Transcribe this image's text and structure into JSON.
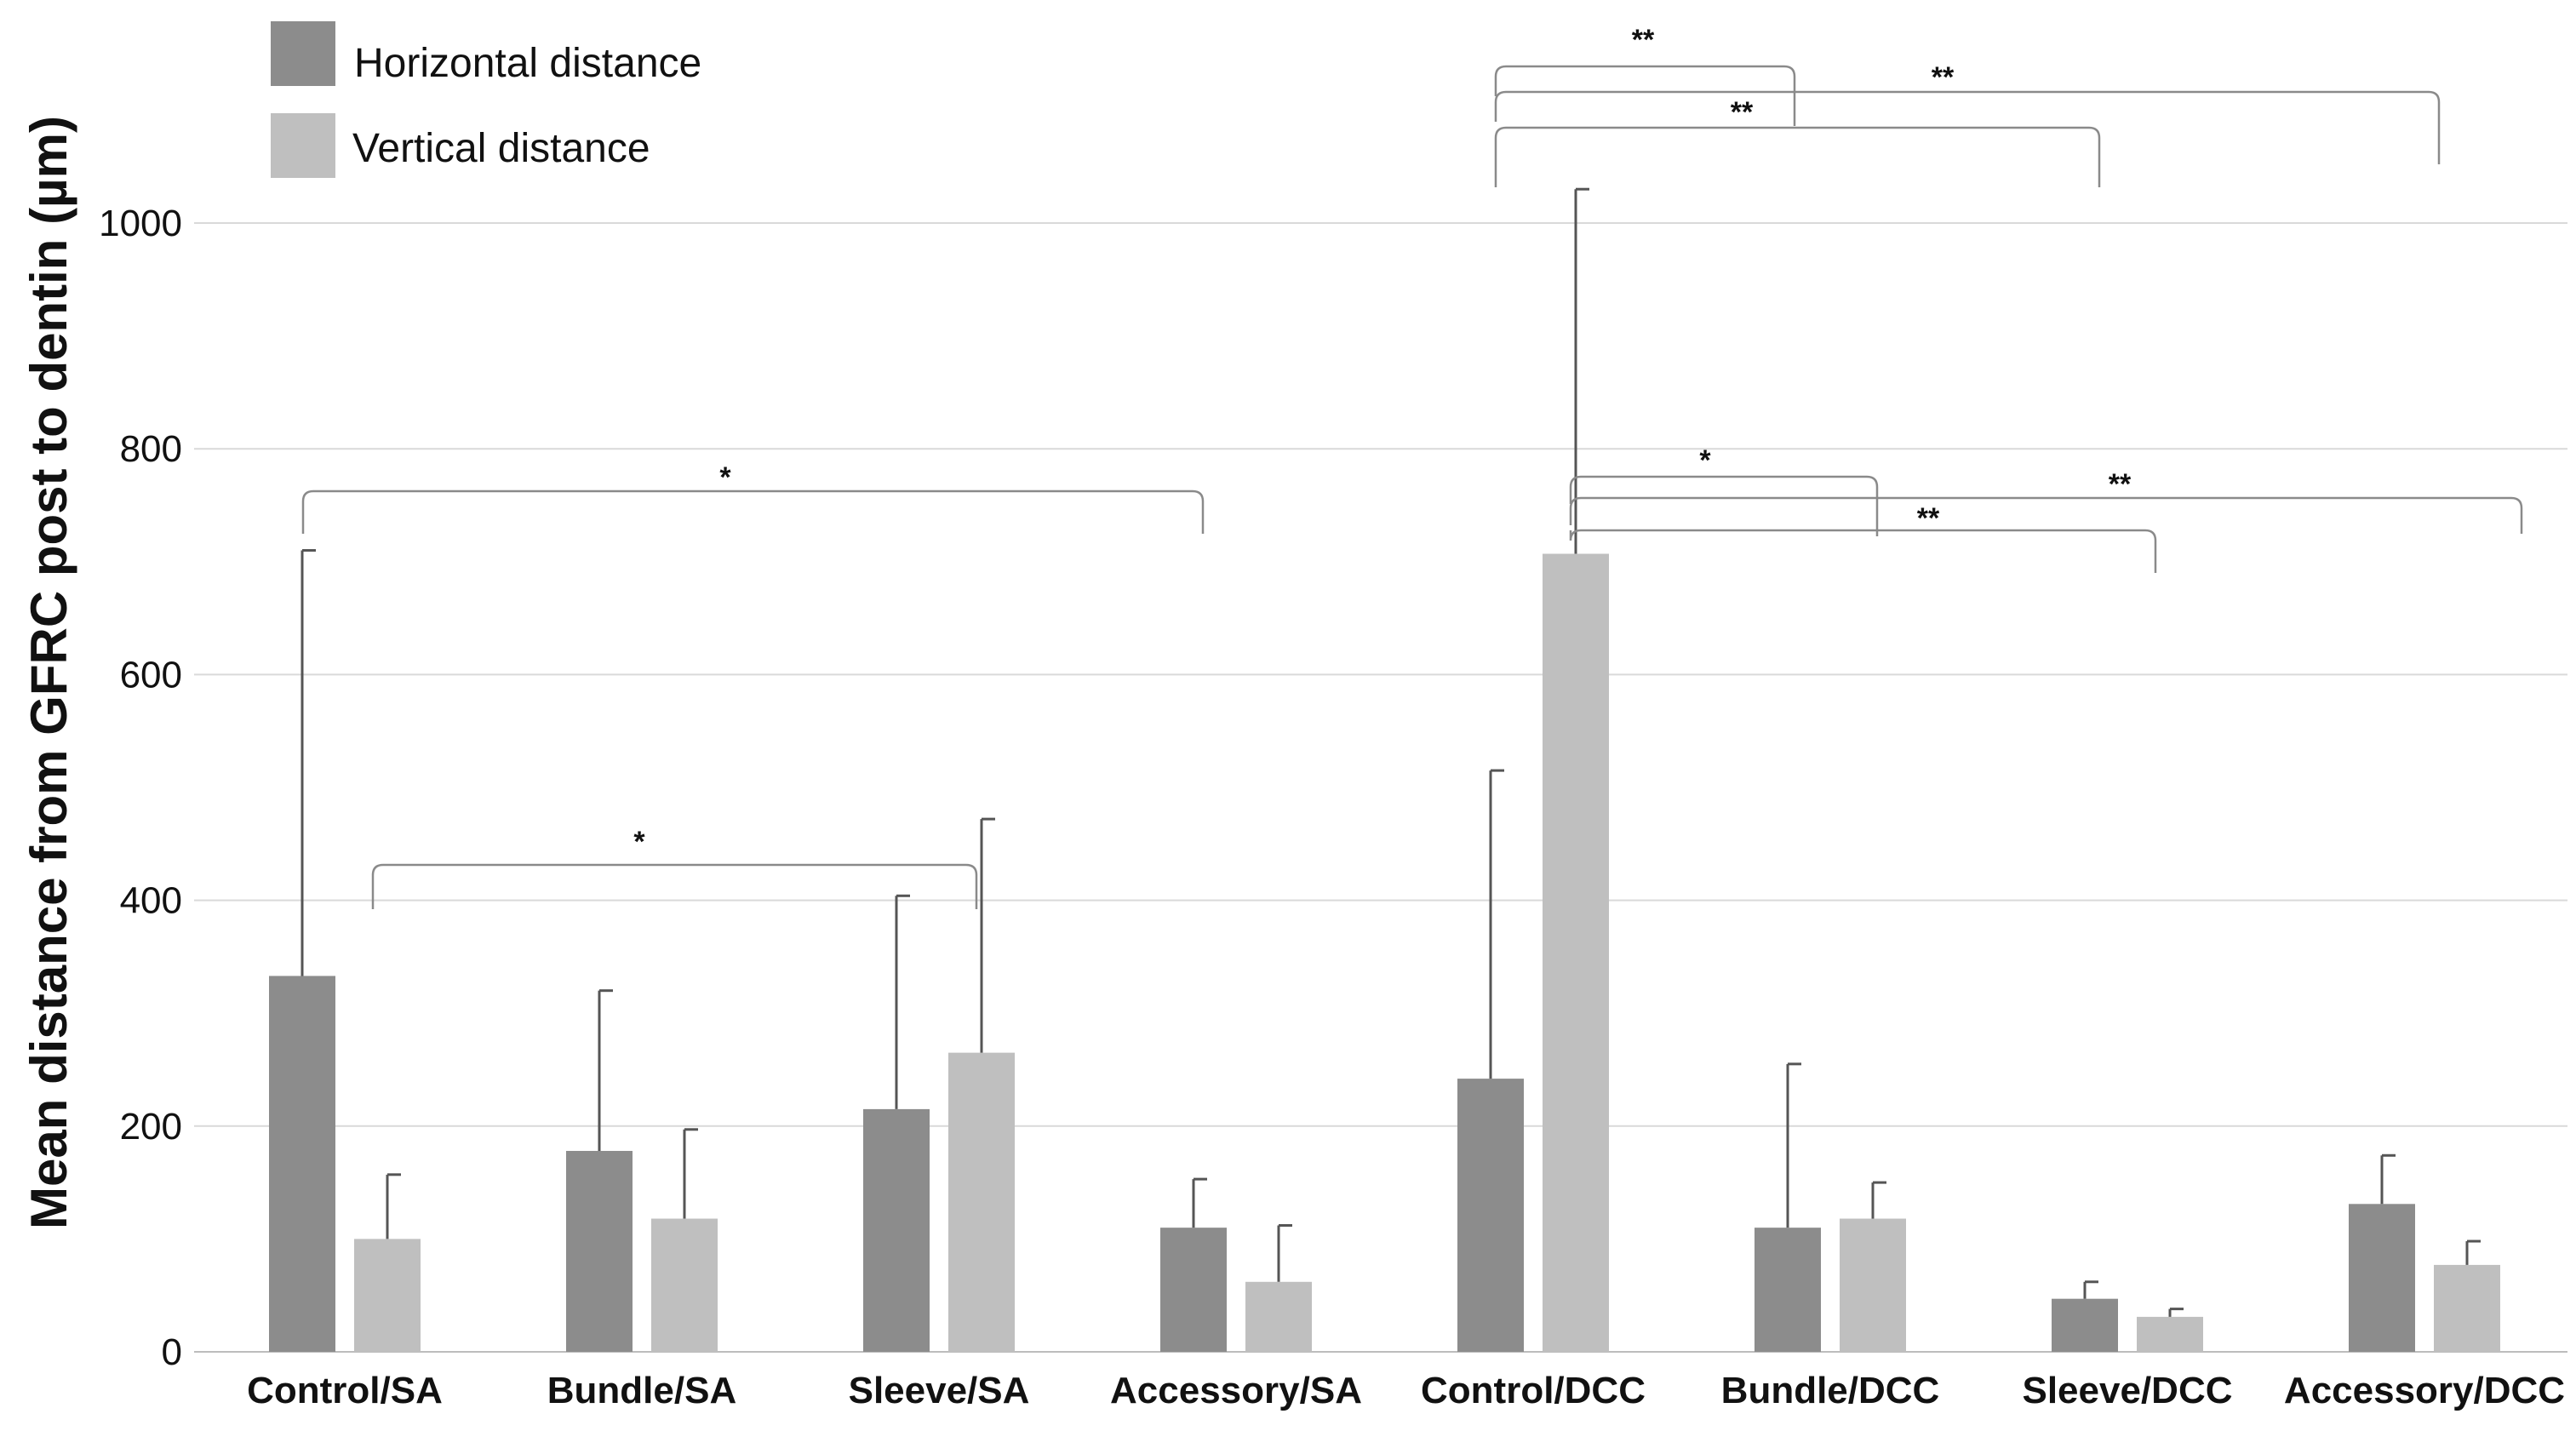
{
  "chart_data": {
    "type": "bar",
    "title": "",
    "xlabel": "",
    "ylabel": "Mean distance from GFRC post to dentin (µm)",
    "ylim": [
      0,
      1000
    ],
    "yticks": [
      0,
      200,
      400,
      600,
      800,
      1000
    ],
    "grid": true,
    "legend_position": "top-left",
    "categories": [
      "Control/SA",
      "Bundle/SA",
      "Sleeve/SA",
      "Accessory/SA",
      "Control/DCC",
      "Bundle/DCC",
      "Sleeve/DCC",
      "Accessory/DCC"
    ],
    "series": [
      {
        "name": "Horizontal distance",
        "color": "#8c8c8c",
        "values": [
          333,
          178,
          215,
          110,
          242,
          110,
          47,
          131
        ],
        "error_upper": [
          710,
          320,
          404,
          153,
          515,
          255,
          62,
          174
        ]
      },
      {
        "name": "Vertical distance",
        "color": "#bfbfbf",
        "values": [
          100,
          118,
          265,
          62,
          707,
          118,
          31,
          77
        ],
        "error_upper": [
          157,
          197,
          472,
          112,
          1030,
          150,
          38,
          98
        ]
      }
    ],
    "significance": [
      {
        "from": "Control/SA horizontal",
        "to": "Accessory/SA horizontal",
        "label": "*"
      },
      {
        "from": "Control/SA vertical",
        "to": "Sleeve/SA horizontal",
        "label": "*"
      },
      {
        "from": "Control/DCC horizontal",
        "to": "Bundle/DCC horizontal",
        "label": "**"
      },
      {
        "from": "Control/DCC horizontal",
        "to": "Accessory/DCC horizontal",
        "label": "**"
      },
      {
        "from": "Control/DCC horizontal",
        "to": "Sleeve/DCC horizontal",
        "label": "**"
      },
      {
        "from": "Control/DCC vertical",
        "to": "Bundle/DCC vertical",
        "label": "*"
      },
      {
        "from": "Control/DCC vertical",
        "to": "Accessory/DCC vertical",
        "label": "**"
      },
      {
        "from": "Control/DCC vertical",
        "to": "Sleeve/DCC vertical",
        "label": "**"
      }
    ]
  }
}
